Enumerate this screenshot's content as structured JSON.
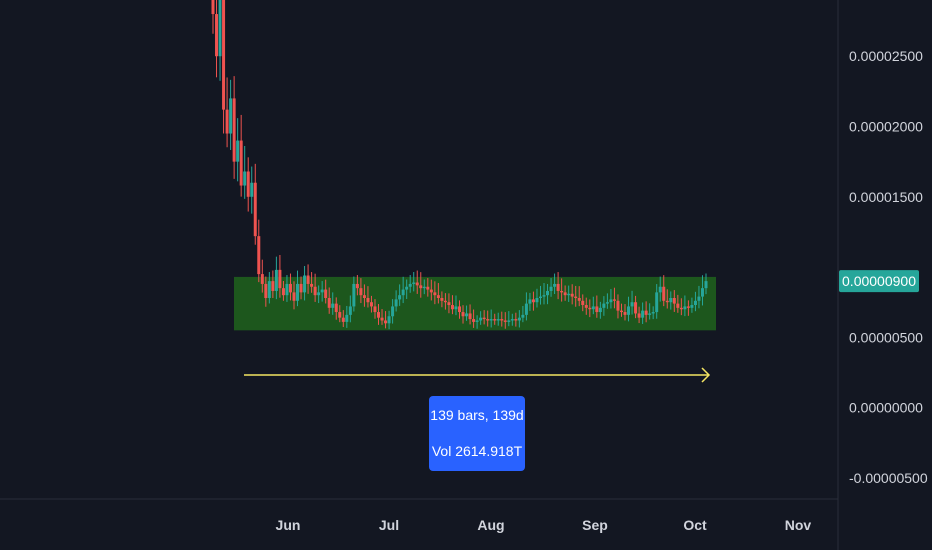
{
  "chart_data": {
    "type": "candlestick",
    "ylim": [
      -6.5e-06,
      2.9e-05
    ],
    "y_ticks": [
      {
        "value": 2.5e-05,
        "label": "0.00002500"
      },
      {
        "value": 2e-05,
        "label": "0.00002000"
      },
      {
        "value": 1.5e-05,
        "label": "0.00001500"
      },
      {
        "value": 5e-06,
        "label": "0.00000500"
      },
      {
        "value": 0.0,
        "label": "0.00000000"
      },
      {
        "value": -5e-06,
        "label": "-0.00000500"
      }
    ],
    "x_ticks": [
      "Jun",
      "Jul",
      "Aug",
      "Sep",
      "Oct",
      "Nov"
    ],
    "last_price": {
      "value": 9e-06,
      "label": "0.00000900"
    },
    "range_box": {
      "start_bar": 0,
      "end_bar": 138,
      "top": 9.3e-06,
      "bottom": 5.5e-06
    },
    "measure": {
      "bars_text": "139 bars, 139d",
      "volume_text": "Vol 2614.918T"
    },
    "series_closes": [
      2.8e-05,
      2.5e-05,
      2.9e-05,
      2.12e-05,
      1.95e-05,
      2.2e-05,
      1.75e-05,
      1.9e-05,
      1.58e-05,
      1.68e-05,
      1.5e-05,
      1.6e-05,
      1.22e-05,
      9.5e-06,
      8.8e-06,
      7.8e-06,
      9e-06,
      8.3e-06,
      9.8e-06,
      8.5e-06,
      8e-06,
      8.8e-06,
      8.2e-06,
      7.6e-06,
      8.8e-06,
      8.2e-06,
      9.4e-06,
      8.8e-06,
      8.6e-06,
      8e-06,
      8.2e-06,
      8.4e-06,
      7.8e-06,
      7.1e-06,
      7.4e-06,
      6.8e-06,
      6.4e-06,
      6.1e-06,
      6.6e-06,
      7.2e-06,
      8.8e-06,
      8.5e-06,
      8e-06,
      7.8e-06,
      7.5e-06,
      7.2e-06,
      6.8e-06,
      6.4e-06,
      6.2e-06,
      6e-06,
      6.5e-06,
      7.2e-06,
      7.7e-06,
      8e-06,
      8.4e-06,
      8.6e-06,
      8.8e-06,
      8.9e-06,
      8.7e-06,
      8.5e-06,
      8.6e-06,
      8.4e-06,
      8.2e-06,
      8e-06,
      7.8e-06,
      7.6e-06,
      7.5e-06,
      7.3e-06,
      7e-06,
      7.2e-06,
      6.8e-06,
      6.5e-06,
      6.7e-06,
      6.3e-06,
      6.1e-06,
      6.2e-06,
      6.4e-06,
      6.3e-06,
      6.2e-06,
      6.3e-06,
      6.2e-06,
      6.3e-06,
      6.2e-06,
      6.1e-06,
      6.2e-06,
      6.3e-06,
      6.2e-06,
      6.4e-06,
      6.6e-06,
      7.4e-06,
      7.7e-06,
      7.5e-06,
      7.8e-06,
      7.9e-06,
      8e-06,
      8.3e-06,
      8.6e-06,
      8.8e-06,
      8.3e-06,
      8.2e-06,
      8e-06,
      8.1e-06,
      7.9e-06,
      7.8e-06,
      7.6e-06,
      7.3e-06,
      7.1e-06,
      7e-06,
      7.2e-06,
      6.8e-06,
      7.1e-06,
      7.4e-06,
      7.5e-06,
      7.7e-06,
      7.6e-06,
      6.9e-06,
      6.8e-06,
      6.6e-06,
      7.2e-06,
      7.5e-06,
      6.7e-06,
      6.4e-06,
      6.9e-06,
      6.6e-06,
      6.7e-06,
      6.8e-06,
      8.2e-06,
      8.6e-06,
      7.6e-06,
      7.5e-06,
      7.8e-06,
      7.4e-06,
      7.1e-06,
      7e-06,
      7.2e-06,
      7.1e-06,
      7.3e-06,
      7.6e-06,
      7.9e-06,
      8.5e-06,
      9e-06
    ],
    "colors": {
      "up": "#26a69a",
      "down": "#ef5350",
      "box": "#1e5b1d",
      "arrow": "#f5e663",
      "price_tag": "#26a69a",
      "measure_bg": "#2962ff",
      "grid_border": "#2a2e39"
    }
  }
}
